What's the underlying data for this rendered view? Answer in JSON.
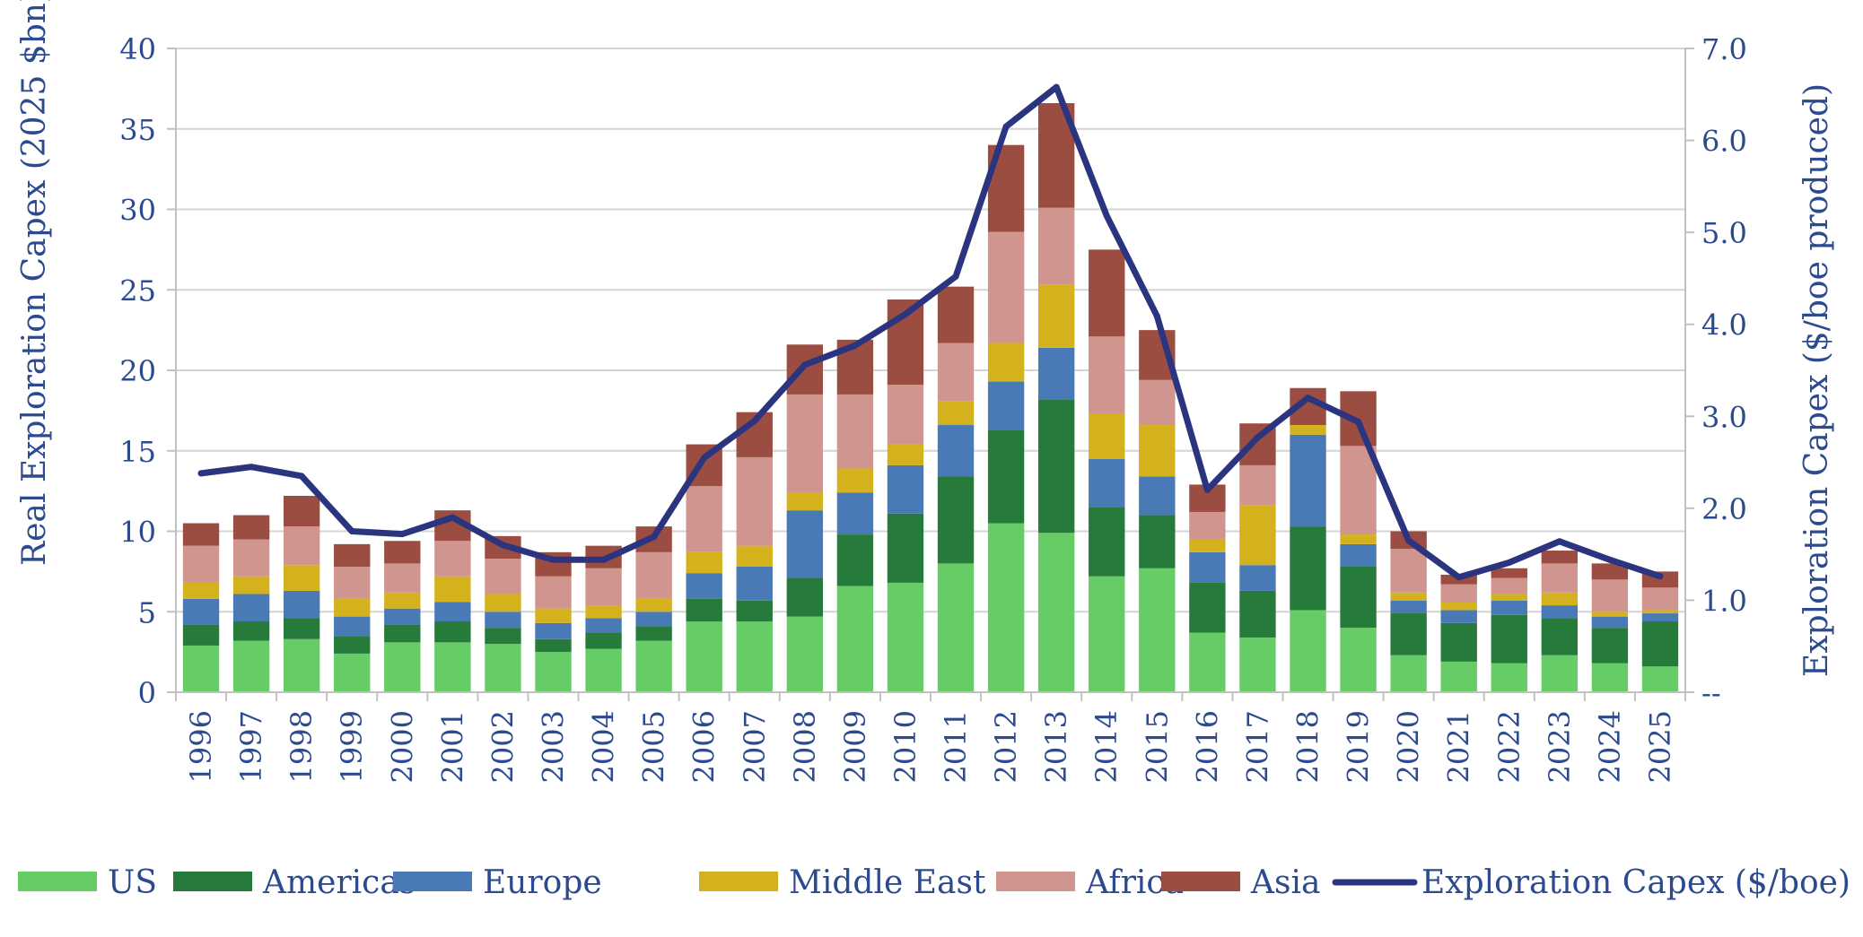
{
  "chart_data": {
    "type": "bar",
    "stacked": true,
    "categories": [
      "1996",
      "1997",
      "1998",
      "1999",
      "2000",
      "2001",
      "2002",
      "2003",
      "2004",
      "2005",
      "2006",
      "2007",
      "2008",
      "2009",
      "2010",
      "2011",
      "2012",
      "2013",
      "2014",
      "2015",
      "2016",
      "2017",
      "2018",
      "2019",
      "2020",
      "2021",
      "2022",
      "2023",
      "2024",
      "2025"
    ],
    "ylabel": "Real Exploration Capex (2025 $bn)",
    "ylim": [
      0,
      40
    ],
    "yticks": [
      "0",
      "5",
      "10",
      "15",
      "20",
      "25",
      "30",
      "35",
      "40"
    ],
    "y2label": "Exploration Capex ($/boe produced)",
    "y2lim": [
      0,
      7
    ],
    "y2ticks": [
      "--",
      "1.0",
      "2.0",
      "3.0",
      "4.0",
      "5.0",
      "6.0",
      "7.0"
    ],
    "grid": true,
    "legend_position": "bottom",
    "series": [
      {
        "name": "US",
        "color": "#66cc66",
        "values": [
          2.9,
          3.2,
          3.3,
          2.4,
          3.1,
          3.1,
          3.0,
          2.5,
          2.7,
          3.2,
          4.4,
          4.4,
          4.7,
          6.6,
          6.8,
          8.0,
          10.5,
          9.9,
          7.2,
          7.7,
          3.7,
          3.4,
          5.1,
          4.0,
          2.3,
          1.9,
          1.8,
          2.3,
          1.8,
          1.6
        ]
      },
      {
        "name": "Americas",
        "color": "#267a3a",
        "values": [
          1.3,
          1.2,
          1.3,
          1.1,
          1.1,
          1.3,
          1.0,
          0.8,
          1.0,
          0.9,
          1.4,
          1.3,
          2.4,
          3.2,
          4.3,
          5.4,
          5.8,
          8.3,
          4.3,
          3.3,
          3.1,
          2.9,
          5.2,
          3.8,
          2.6,
          2.4,
          3.0,
          2.3,
          2.2,
          2.8
        ]
      },
      {
        "name": "Europe",
        "color": "#4a7ab5",
        "values": [
          1.6,
          1.7,
          1.7,
          1.2,
          1.0,
          1.2,
          1.0,
          1.0,
          0.9,
          0.9,
          1.6,
          2.1,
          4.2,
          2.6,
          3.0,
          3.2,
          3.0,
          3.2,
          3.0,
          2.4,
          1.9,
          1.6,
          5.7,
          1.4,
          0.8,
          0.8,
          0.9,
          0.8,
          0.7,
          0.5
        ]
      },
      {
        "name": "Middle East",
        "color": "#d4b21e",
        "values": [
          1.0,
          1.1,
          1.6,
          1.1,
          1.0,
          1.6,
          1.1,
          0.9,
          0.8,
          0.8,
          1.3,
          1.3,
          1.1,
          1.5,
          1.3,
          1.5,
          2.4,
          3.9,
          2.8,
          3.2,
          0.8,
          3.7,
          0.6,
          0.6,
          0.5,
          0.5,
          0.4,
          0.8,
          0.3,
          0.2
        ]
      },
      {
        "name": "Africa",
        "color": "#d19590",
        "values": [
          2.3,
          2.3,
          2.4,
          2.0,
          1.8,
          2.2,
          2.2,
          2.0,
          2.3,
          2.9,
          4.1,
          5.5,
          6.1,
          4.6,
          3.7,
          3.6,
          6.9,
          4.8,
          4.8,
          2.8,
          1.7,
          2.5,
          0.0,
          5.5,
          2.7,
          1.1,
          1.0,
          1.8,
          2.0,
          1.4
        ]
      },
      {
        "name": "Asia",
        "color": "#9c4d42",
        "values": [
          1.4,
          1.5,
          1.9,
          1.4,
          1.4,
          1.9,
          1.4,
          1.5,
          1.4,
          1.6,
          2.6,
          2.8,
          3.1,
          3.4,
          5.3,
          3.5,
          5.4,
          6.5,
          5.4,
          3.1,
          1.7,
          2.6,
          2.3,
          3.4,
          1.1,
          0.6,
          0.6,
          0.8,
          1.0,
          1.0
        ]
      }
    ],
    "line_series": {
      "name": "Exploration Capex ($/boe)",
      "color": "#2b357f",
      "axis": "right",
      "values": [
        2.38,
        2.45,
        2.35,
        1.75,
        1.72,
        1.9,
        1.6,
        1.44,
        1.44,
        1.69,
        2.55,
        2.95,
        3.56,
        3.77,
        4.11,
        4.52,
        6.15,
        6.58,
        5.18,
        4.09,
        2.2,
        2.77,
        3.2,
        2.94,
        1.65,
        1.25,
        1.41,
        1.64,
        1.44,
        1.26
      ]
    }
  }
}
